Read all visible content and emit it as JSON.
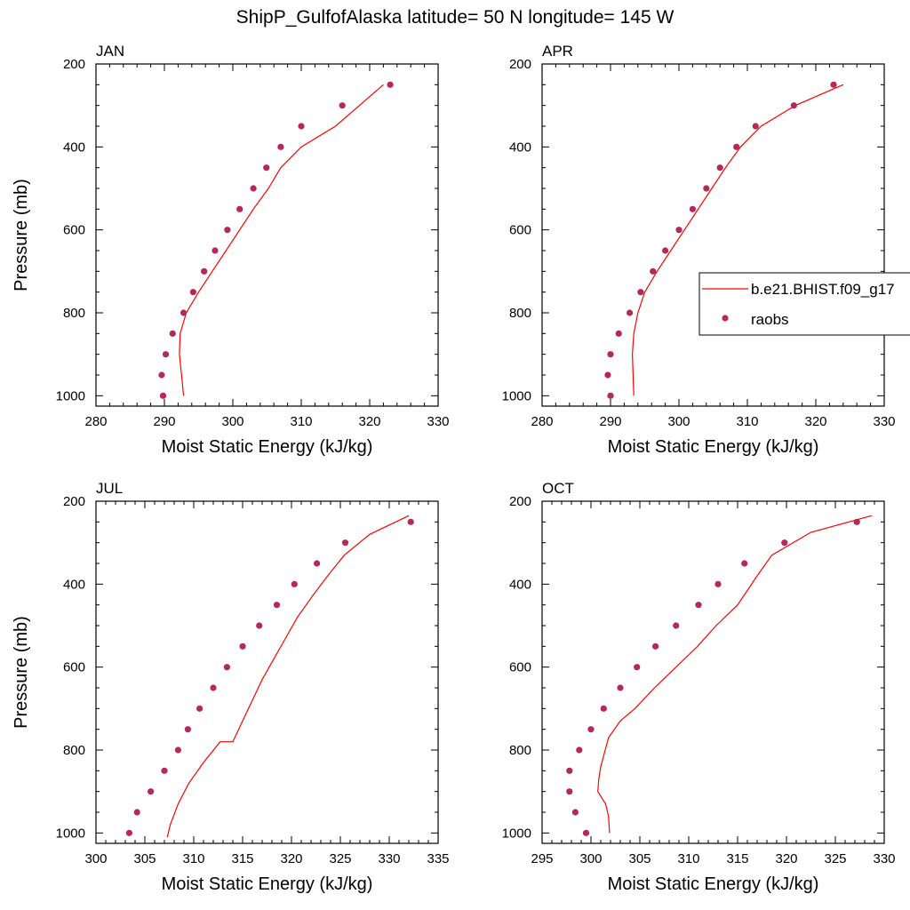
{
  "figure_title": "ShipP_GulfofAlaska  latitude= 50 N longitude= 145 W",
  "legend": {
    "model_label": "b.e21.BHIST.f09_g17",
    "obs_label": "raobs"
  },
  "colors": {
    "model_line": "#ff0000",
    "obs_marker": "#b5295a",
    "axis": "#000000"
  },
  "chart_data": [
    {
      "type": "line",
      "panel_title": "JAN",
      "xlabel": "Moist Static Energy (kJ/kg)",
      "ylabel": "Pressure (mb)",
      "xlim": [
        280,
        330
      ],
      "ylim": [
        1025,
        200
      ],
      "xticks": [
        280,
        290,
        300,
        310,
        320,
        330
      ],
      "yticks": [
        200,
        400,
        600,
        800,
        1000
      ],
      "series": [
        {
          "name": "b.e21.BHIST.f09_g17",
          "style": "line",
          "x": [
            292.8,
            292.5,
            292.2,
            292.3,
            293.2,
            295.0,
            297.0,
            299.0,
            301.0,
            303.0,
            305.2,
            307.0,
            310.0,
            315.0,
            322.0
          ],
          "y": [
            1000,
            950,
            900,
            850,
            800,
            750,
            700,
            650,
            600,
            550,
            500,
            450,
            400,
            350,
            250
          ]
        },
        {
          "name": "raobs",
          "style": "markers",
          "x": [
            289.8,
            289.6,
            290.2,
            291.2,
            292.8,
            294.2,
            295.8,
            297.4,
            299.2,
            301.0,
            303.0,
            304.9,
            307.0,
            310.0,
            316.0,
            323.0
          ],
          "y": [
            1000,
            950,
            900,
            850,
            800,
            750,
            700,
            650,
            600,
            550,
            500,
            450,
            400,
            350,
            300,
            250
          ]
        }
      ]
    },
    {
      "type": "line",
      "panel_title": "APR",
      "xlabel": "Moist Static Energy (kJ/kg)",
      "ylabel": "",
      "xlim": [
        280,
        330
      ],
      "ylim": [
        1025,
        200
      ],
      "xticks": [
        280,
        290,
        300,
        310,
        320,
        330
      ],
      "yticks": [
        200,
        400,
        600,
        800,
        1000
      ],
      "series": [
        {
          "name": "b.e21.BHIST.f09_g17",
          "style": "line",
          "x": [
            293.4,
            293.3,
            293.2,
            293.4,
            294.0,
            295.0,
            296.8,
            298.8,
            300.8,
            302.8,
            304.8,
            306.8,
            309.0,
            312.0,
            317.0,
            324.0
          ],
          "y": [
            1000,
            950,
            900,
            850,
            800,
            750,
            700,
            650,
            600,
            550,
            500,
            450,
            400,
            350,
            300,
            250
          ]
        },
        {
          "name": "raobs",
          "style": "markers",
          "x": [
            290.0,
            289.6,
            290.0,
            291.2,
            292.8,
            294.4,
            296.2,
            298.0,
            300.0,
            302.0,
            304.0,
            306.0,
            308.4,
            311.2,
            316.8,
            322.6
          ],
          "y": [
            1000,
            950,
            900,
            850,
            800,
            750,
            700,
            650,
            600,
            550,
            500,
            450,
            400,
            350,
            300,
            250
          ]
        }
      ]
    },
    {
      "type": "line",
      "panel_title": "JUL",
      "xlabel": "Moist Static Energy (kJ/kg)",
      "ylabel": "Pressure (mb)",
      "xlim": [
        300,
        335
      ],
      "ylim": [
        1025,
        200
      ],
      "xticks": [
        300,
        305,
        310,
        315,
        320,
        325,
        330,
        335
      ],
      "yticks": [
        200,
        400,
        600,
        800,
        1000
      ],
      "series": [
        {
          "name": "b.e21.BHIST.f09_g17",
          "style": "line",
          "x": [
            307.3,
            307.6,
            308.4,
            309.5,
            311.0,
            312.7,
            314.0,
            315.0,
            316.0,
            317.0,
            318.2,
            319.4,
            320.6,
            322.1,
            323.7,
            325.4,
            328.0,
            332.0
          ],
          "y": [
            1010,
            980,
            930,
            880,
            830,
            780,
            780,
            730,
            680,
            630,
            580,
            530,
            480,
            430,
            380,
            330,
            280,
            235
          ]
        },
        {
          "name": "raobs",
          "style": "markers",
          "x": [
            303.4,
            304.2,
            305.6,
            307.0,
            308.4,
            309.4,
            310.6,
            312.0,
            313.4,
            315.0,
            316.7,
            318.5,
            320.3,
            322.6,
            325.5,
            332.2
          ],
          "y": [
            1000,
            950,
            900,
            850,
            800,
            750,
            700,
            650,
            600,
            550,
            500,
            450,
            400,
            350,
            300,
            250
          ]
        }
      ]
    },
    {
      "type": "line",
      "panel_title": "OCT",
      "xlabel": "Moist Static Energy (kJ/kg)",
      "ylabel": "",
      "xlim": [
        295,
        330
      ],
      "ylim": [
        1025,
        200
      ],
      "xticks": [
        295,
        300,
        305,
        310,
        315,
        320,
        325,
        330
      ],
      "yticks": [
        200,
        400,
        600,
        800,
        1000
      ],
      "series": [
        {
          "name": "b.e21.BHIST.f09_g17",
          "style": "line",
          "x": [
            301.9,
            301.8,
            301.5,
            300.7,
            300.8,
            301.0,
            301.8,
            303.0,
            304.5,
            306.5,
            308.7,
            310.9,
            312.8,
            315.0,
            317.0,
            318.5,
            322.5,
            328.7
          ],
          "y": [
            1000,
            960,
            930,
            900,
            870,
            840,
            770,
            730,
            700,
            650,
            600,
            550,
            500,
            450,
            380,
            330,
            275,
            235
          ]
        },
        {
          "name": "raobs",
          "style": "markers",
          "x": [
            299.5,
            298.4,
            297.8,
            297.8,
            298.8,
            300.0,
            301.3,
            303.0,
            304.7,
            306.6,
            308.7,
            311.0,
            313.0,
            315.7,
            319.8,
            327.2
          ],
          "y": [
            1000,
            950,
            900,
            850,
            800,
            750,
            700,
            650,
            600,
            550,
            500,
            450,
            400,
            350,
            300,
            250
          ]
        }
      ]
    }
  ]
}
